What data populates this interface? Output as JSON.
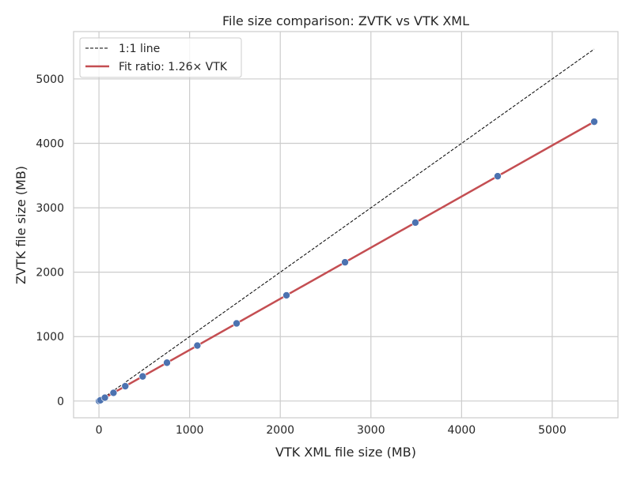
{
  "chart_data": {
    "type": "scatter",
    "title": "File size comparison: ZVTK vs VTK XML",
    "xlabel": "VTK XML file size (MB)",
    "ylabel": "ZVTK file size (MB)",
    "xlim": [
      -280,
      5725
    ],
    "ylim": [
      -260,
      5735
    ],
    "xticks": [
      0,
      1000,
      2000,
      3000,
      4000,
      5000
    ],
    "yticks": [
      0,
      1000,
      2000,
      3000,
      4000,
      5000
    ],
    "grid": true,
    "legend_position": "top-left",
    "points": {
      "x": [
        0,
        15,
        65,
        160,
        290,
        482,
        750,
        1085,
        1518,
        2068,
        2714,
        3490,
        4398,
        5463
      ],
      "y": [
        0,
        12,
        52,
        127,
        230,
        382,
        595,
        861,
        1205,
        1641,
        2154,
        2770,
        3490,
        4336
      ],
      "color": "#4c72b0"
    },
    "series": [
      {
        "name": "1:1 line",
        "x": [
          0,
          5463
        ],
        "y": [
          0,
          5463
        ],
        "color": "#000000",
        "style": "dashed"
      },
      {
        "name": "Fit ratio: 1.26× VTK",
        "x": [
          0,
          5463
        ],
        "y": [
          0,
          4336
        ],
        "color": "#c44e52",
        "style": "solid"
      }
    ]
  }
}
